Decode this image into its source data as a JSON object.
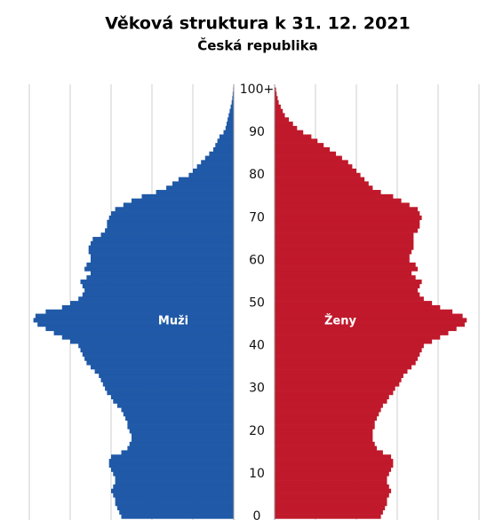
{
  "chart_data": {
    "type": "population_pyramid",
    "title": "Věková struktura k 31. 12. 2021",
    "subtitle": "Česká republika",
    "categories": [
      0,
      null,
      null,
      null,
      null,
      null,
      null,
      null,
      null,
      null,
      10,
      null,
      null,
      null,
      null,
      null,
      null,
      null,
      null,
      null,
      20,
      null,
      null,
      null,
      null,
      null,
      null,
      null,
      null,
      null,
      30,
      null,
      null,
      null,
      null,
      null,
      null,
      null,
      null,
      null,
      40,
      null,
      null,
      null,
      null,
      null,
      null,
      null,
      null,
      null,
      50,
      null,
      null,
      null,
      null,
      null,
      null,
      null,
      null,
      null,
      60,
      null,
      null,
      null,
      null,
      null,
      null,
      null,
      null,
      null,
      70,
      null,
      null,
      null,
      null,
      null,
      null,
      null,
      null,
      null,
      80,
      null,
      null,
      null,
      null,
      null,
      null,
      null,
      null,
      null,
      90,
      null,
      null,
      null,
      null,
      null,
      null,
      null,
      null,
      null,
      "100+"
    ],
    "xlim": [
      0,
      100
    ],
    "xticks": [
      20,
      40,
      60,
      80,
      100
    ],
    "grid": true,
    "series": [
      {
        "name": "Muži",
        "color": "#1f59a7",
        "side": "left",
        "values": [
          55,
          56,
          57,
          58,
          58,
          59,
          60,
          59,
          58,
          58,
          59,
          60,
          61,
          61,
          60,
          55,
          52,
          51,
          50,
          50,
          51,
          52,
          52,
          53,
          54,
          55,
          57,
          59,
          60,
          62,
          63,
          64,
          65,
          66,
          68,
          70,
          72,
          73,
          74,
          75,
          76,
          80,
          84,
          88,
          92,
          96,
          98,
          97,
          92,
          84,
          80,
          76,
          74,
          73,
          74,
          75,
          72,
          70,
          73,
          72,
          70,
          70,
          71,
          71,
          70,
          69,
          65,
          63,
          62,
          62,
          61,
          60,
          58,
          54,
          50,
          45,
          38,
          33,
          30,
          27,
          22,
          20,
          18,
          16,
          14,
          12,
          10,
          9,
          8,
          7,
          5,
          4,
          3.5,
          3,
          2.5,
          2,
          1.5,
          1,
          0.7,
          0.5,
          0.3
        ]
      },
      {
        "name": "Ženy",
        "color": "#c0192b",
        "side": "right",
        "values": [
          52,
          53,
          54,
          55,
          55,
          56,
          57,
          56,
          55,
          55,
          56,
          57,
          58,
          58,
          57,
          53,
          50,
          49,
          48,
          48,
          48,
          49,
          49,
          50,
          51,
          52,
          53,
          55,
          56,
          58,
          59,
          61,
          62,
          63,
          65,
          67,
          69,
          70,
          71,
          72,
          73,
          77,
          81,
          85,
          89,
          93,
          94,
          92,
          87,
          81,
          77,
          73,
          71,
          70,
          71,
          72,
          69,
          67,
          70,
          69,
          66,
          66,
          67,
          68,
          68,
          68,
          68,
          70,
          71,
          71,
          72,
          71,
          70,
          66,
          62,
          58,
          52,
          48,
          46,
          44,
          42,
          40,
          38,
          36,
          33,
          30,
          27,
          24,
          21,
          18,
          14,
          11,
          9,
          7,
          5,
          4,
          3,
          2,
          1.5,
          1,
          0.7
        ]
      }
    ]
  }
}
